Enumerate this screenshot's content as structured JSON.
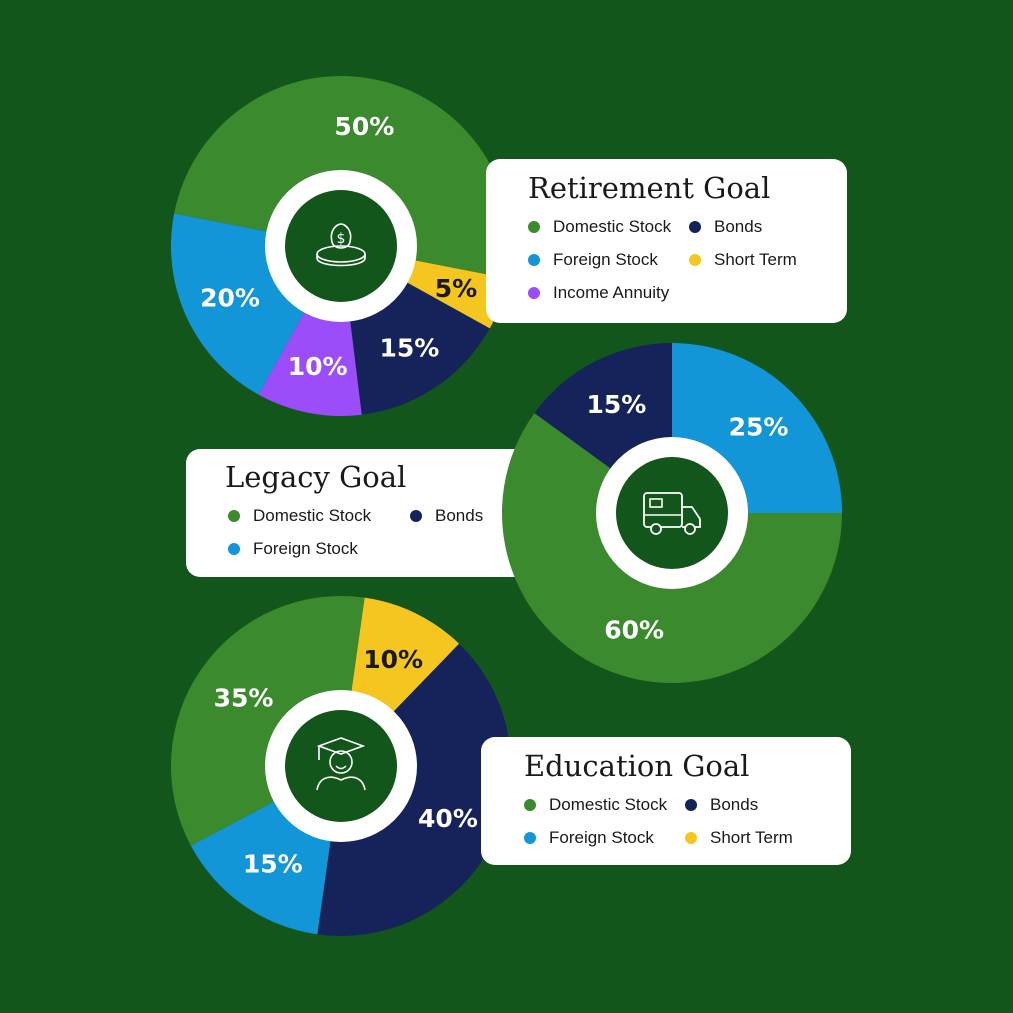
{
  "colors": {
    "background": "#12561c",
    "domestic_stock": "#3b8a2e",
    "foreign_stock": "#1296d7",
    "bonds": "#15235a",
    "short_term": "#f5c620",
    "income_annuity": "#9b4dfa",
    "center": "#12561c"
  },
  "chart_data": [
    {
      "type": "pie",
      "title": "Retirement Goal",
      "icon": "money-bag-nest-icon",
      "slices": [
        {
          "label": "Domestic Stock",
          "value": 50,
          "display": "50%",
          "color": "#3b8a2e",
          "text_color": "#ffffff"
        },
        {
          "label": "Short Term",
          "value": 5,
          "display": "5%",
          "color": "#f5c620",
          "text_color": "#1a1a1a"
        },
        {
          "label": "Bonds",
          "value": 15,
          "display": "15%",
          "color": "#15235a",
          "text_color": "#ffffff"
        },
        {
          "label": "Income Annuity",
          "value": 10,
          "display": "10%",
          "color": "#9b4dfa",
          "text_color": "#ffffff"
        },
        {
          "label": "Foreign Stock",
          "value": 20,
          "display": "20%",
          "color": "#1296d7",
          "text_color": "#ffffff"
        }
      ],
      "legend": [
        "Domestic Stock",
        "Bonds",
        "Foreign Stock",
        "Short Term",
        "Income Annuity"
      ],
      "legend_placement": "right"
    },
    {
      "type": "pie",
      "title": "Legacy Goal",
      "icon": "camper-van-icon",
      "slices": [
        {
          "label": "Foreign Stock",
          "value": 25,
          "display": "25%",
          "color": "#1296d7",
          "text_color": "#ffffff"
        },
        {
          "label": "Domestic Stock",
          "value": 60,
          "display": "60%",
          "color": "#3b8a2e",
          "text_color": "#ffffff"
        },
        {
          "label": "Bonds",
          "value": 15,
          "display": "15%",
          "color": "#15235a",
          "text_color": "#ffffff"
        }
      ],
      "legend": [
        "Domestic Stock",
        "Bonds",
        "Foreign Stock"
      ],
      "legend_placement": "left"
    },
    {
      "type": "pie",
      "title": "Education Goal",
      "icon": "graduate-icon",
      "slices": [
        {
          "label": "Domestic Stock",
          "value": 35,
          "display": "35%",
          "color": "#3b8a2e",
          "text_color": "#ffffff"
        },
        {
          "label": "Short Term",
          "value": 10,
          "display": "10%",
          "color": "#f5c620",
          "text_color": "#1a1a1a"
        },
        {
          "label": "Bonds",
          "value": 40,
          "display": "40%",
          "color": "#15235a",
          "text_color": "#ffffff"
        },
        {
          "label": "Foreign Stock",
          "value": 15,
          "display": "15%",
          "color": "#1296d7",
          "text_color": "#ffffff"
        }
      ],
      "legend": [
        "Domestic Stock",
        "Bonds",
        "Foreign Stock",
        "Short Term"
      ],
      "legend_placement": "right"
    }
  ]
}
